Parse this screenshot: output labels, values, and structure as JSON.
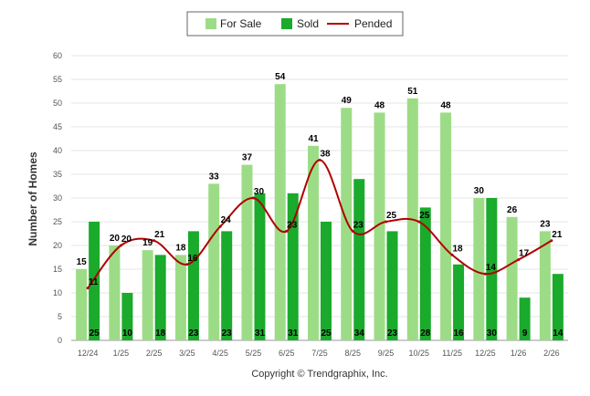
{
  "chart_data": {
    "type": "bar",
    "title": "",
    "xlabel": "",
    "ylabel": "Number of Homes",
    "ylim": [
      0,
      60
    ],
    "yticks": [
      "0",
      "5",
      "10",
      "15",
      "20",
      "25",
      "30",
      "35",
      "40",
      "45",
      "50",
      "55",
      "60"
    ],
    "categories": [
      "12/24",
      "1/25",
      "2/25",
      "3/25",
      "4/25",
      "5/25",
      "6/25",
      "7/25",
      "8/25",
      "9/25",
      "10/25",
      "11/25",
      "12/25",
      "1/26",
      "2/26"
    ],
    "series": [
      {
        "name": "For Sale",
        "kind": "bar",
        "color": "#9ddc86",
        "values": [
          15,
          20,
          19,
          18,
          33,
          37,
          54,
          41,
          49,
          48,
          51,
          48,
          30,
          26,
          23
        ]
      },
      {
        "name": "Sold",
        "kind": "bar",
        "color": "#1aaa2c",
        "values": [
          25,
          10,
          18,
          23,
          23,
          31,
          31,
          25,
          34,
          23,
          28,
          16,
          30,
          9,
          14
        ]
      },
      {
        "name": "Pended",
        "kind": "line",
        "color": "#b00000",
        "values": [
          11,
          20,
          21,
          16,
          24,
          30,
          23,
          38,
          23,
          25,
          25,
          18,
          14,
          17,
          21
        ]
      }
    ],
    "legend_position": "top-center"
  },
  "footer": "Copyright © Trendgraphix, Inc."
}
